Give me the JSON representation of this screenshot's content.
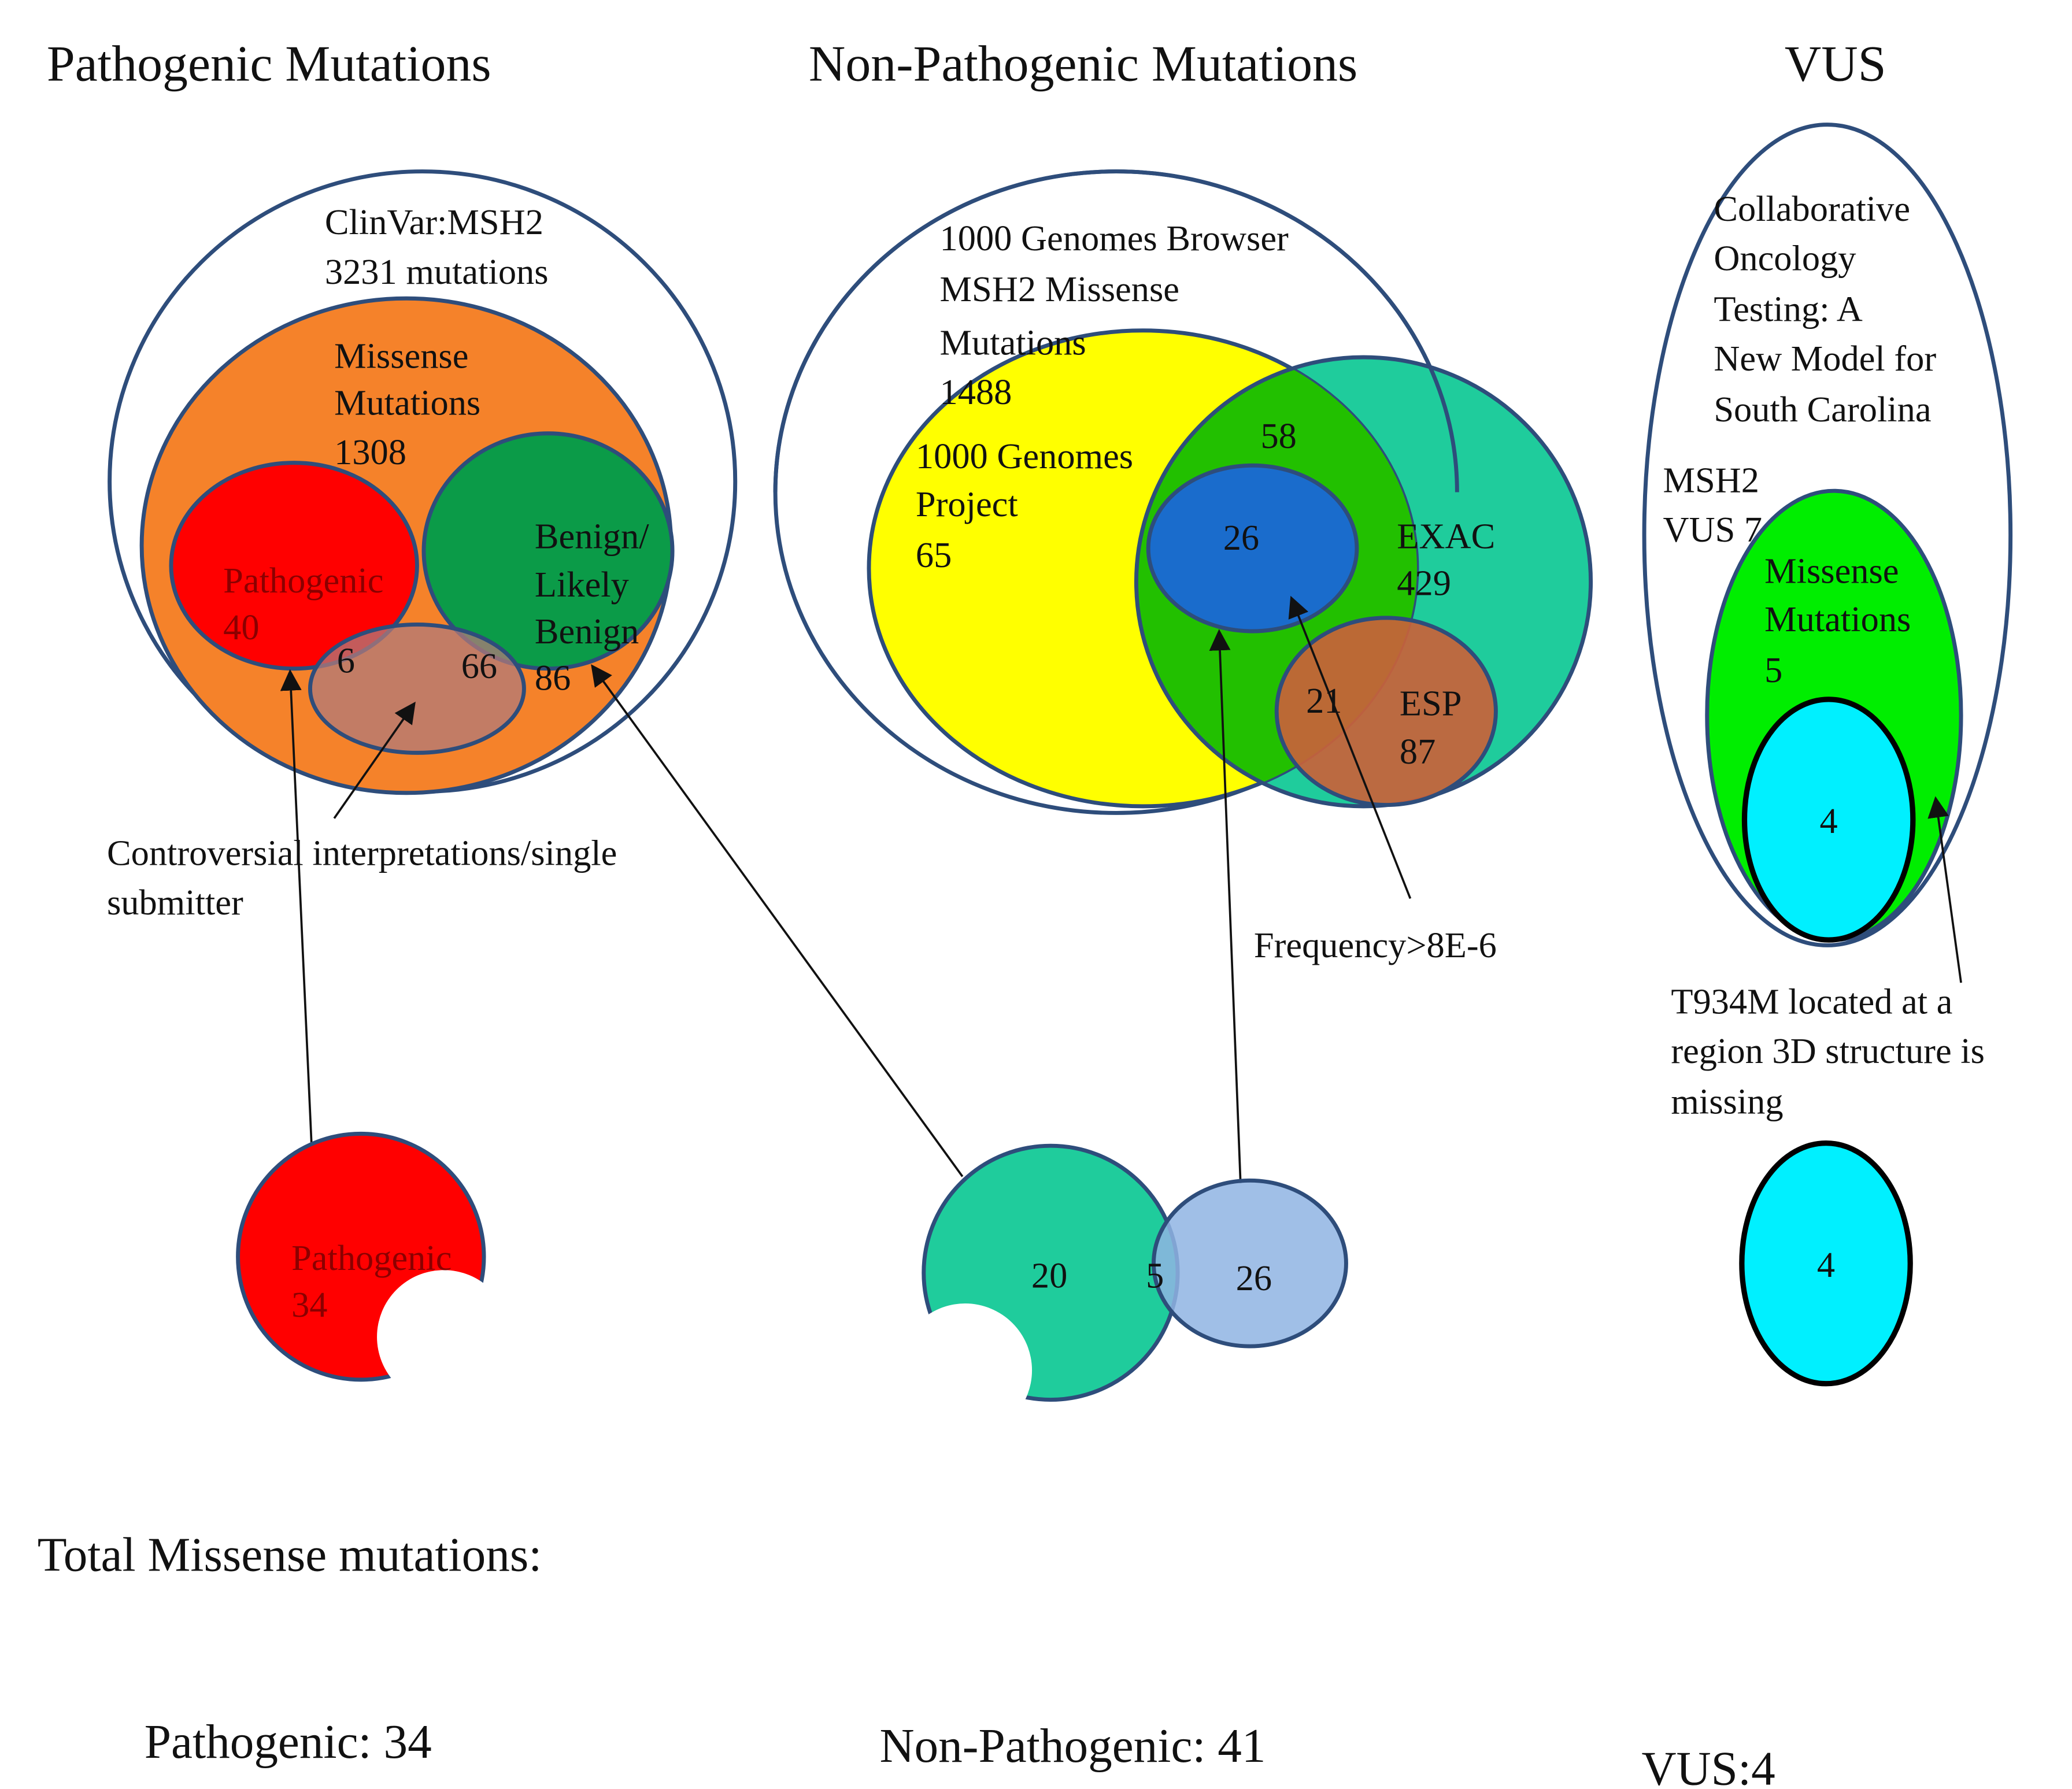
{
  "titles": [
    "Pathogenic Mutations",
    "Non-Pathogenic Mutations",
    "VUS"
  ],
  "pathogenic": {
    "clinvar": [
      "ClinVar:MSH2",
      "3231 mutations"
    ],
    "missense": [
      "Missense",
      "Mutations",
      1308
    ],
    "pathogenic": [
      "Pathogenic",
      40
    ],
    "overlap_pathogenic": 6,
    "overlap_benign": 66,
    "benign": [
      "Benign/",
      "Likely",
      "Benign",
      86
    ],
    "note": [
      "Controversial interpretations/single",
      "submitter"
    ],
    "result": [
      "Pathogenic",
      34
    ]
  },
  "non_pathogenic": {
    "browser": [
      "1000 Genomes Browser",
      "MSH2 Missense",
      "Mutations",
      1488
    ],
    "project": [
      "1000 Genomes",
      "Project",
      65
    ],
    "overlap_exac": 58,
    "frequent": 26,
    "exac": [
      "EXAC",
      429
    ],
    "overlap_esp": 21,
    "esp": [
      "ESP",
      87
    ],
    "note": "Frequency>8E-6",
    "result": {
      "exac_only": 20,
      "shared": 5,
      "frequent": 26
    }
  },
  "vus": {
    "source": [
      "Collaborative",
      "Oncology",
      "Testing: A",
      "New Model for",
      "South Carolina"
    ],
    "msh2": [
      "MSH2",
      "VUS 7"
    ],
    "missense": [
      "Missense",
      "Mutations",
      5
    ],
    "inner": 4,
    "note": [
      "T934M located at a",
      "region 3D structure is",
      "missing"
    ],
    "result": 4
  },
  "totals": {
    "heading": "Total Missense mutations:",
    "pathogenic": "Pathogenic: 34",
    "non_pathogenic": "Non-Pathogenic: 41",
    "vus": "VUS:4"
  }
}
